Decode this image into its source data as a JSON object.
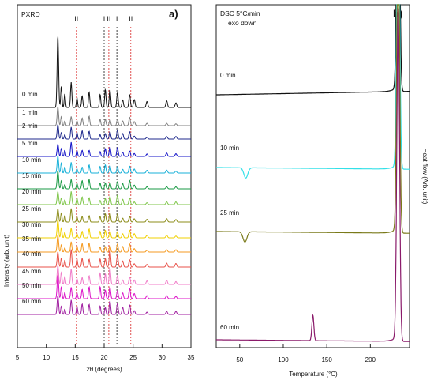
{
  "chart_data": [
    {
      "panel_label": "a)",
      "type": "line",
      "title": "PXRD",
      "xlabel": "2θ (degrees)",
      "ylabel": "Intensity (arb. unit)",
      "xlim": [
        5,
        35
      ],
      "x_ticks": [
        "5",
        "10",
        "15",
        "20",
        "25",
        "30",
        "35"
      ],
      "grid": false,
      "series": [
        {
          "name": "0 min",
          "color": "#111111"
        },
        {
          "name": "1 min",
          "color": "#808080"
        },
        {
          "name": "2 min",
          "color": "#1f2a8c"
        },
        {
          "name": "5 min",
          "color": "#1515c8"
        },
        {
          "name": "10 min",
          "color": "#17b0d8"
        },
        {
          "name": "15 min",
          "color": "#1a9a44"
        },
        {
          "name": "20 min",
          "color": "#7fc64a"
        },
        {
          "name": "25 min",
          "color": "#8c8c1a"
        },
        {
          "name": "30 min",
          "color": "#f0d000"
        },
        {
          "name": "35 min",
          "color": "#f59a20"
        },
        {
          "name": "40 min",
          "color": "#e8524a"
        },
        {
          "name": "45 min",
          "color": "#f07cc8"
        },
        {
          "name": "50 min",
          "color": "#dc14c8"
        },
        {
          "name": "60 min",
          "color": "#a01ea0"
        }
      ],
      "annotations": [
        {
          "label": "II",
          "x": 15.2,
          "line_color": "#e05050"
        },
        {
          "label": "I",
          "x": 20.0,
          "line_color": "#444444"
        },
        {
          "label": "II",
          "x": 20.8,
          "line_color": "#e05050"
        },
        {
          "label": "I",
          "x": 22.2,
          "line_color": "#444444"
        },
        {
          "label": "II",
          "x": 24.6,
          "line_color": "#e05050"
        }
      ]
    },
    {
      "panel_label": "b)",
      "type": "line",
      "title": "DSC 5°C/min",
      "subtitle": "exo down",
      "xlabel": "Temperature (°C)",
      "ylabel": "Heat flow (Arb. unit)",
      "xlim": [
        23,
        245
      ],
      "x_ticks": [
        "50",
        "100",
        "150",
        "200"
      ],
      "grid": false,
      "series": [
        {
          "name": "0 min",
          "color": "#111111",
          "features": [
            {
              "type": "melting",
              "x": 232
            }
          ]
        },
        {
          "name": "10 min",
          "color": "#33e0e8",
          "features": [
            {
              "type": "exo",
              "x": 57
            },
            {
              "type": "melting",
              "x": 232
            }
          ]
        },
        {
          "name": "25 min",
          "color": "#7a7a1a",
          "features": [
            {
              "type": "exo",
              "x": 56
            },
            {
              "type": "melting",
              "x": 232
            }
          ]
        },
        {
          "name": "60 min",
          "color": "#8a1a6a",
          "features": [
            {
              "type": "endo",
              "x": 134
            },
            {
              "type": "melting",
              "x": 232
            }
          ]
        }
      ]
    }
  ]
}
